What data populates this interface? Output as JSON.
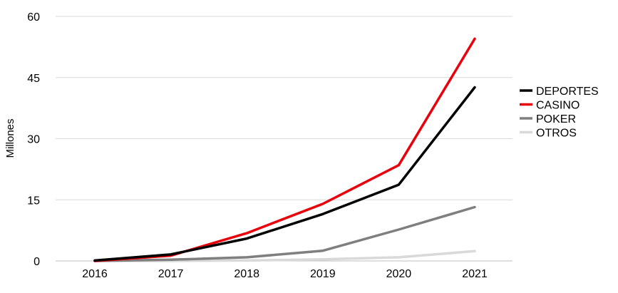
{
  "chart_data": {
    "type": "line",
    "title": "",
    "xlabel": "",
    "ylabel": "Millones",
    "ylim": [
      0,
      60
    ],
    "yticks": [
      "0",
      "15",
      "30",
      "45",
      "60"
    ],
    "categories": [
      "2016",
      "2017",
      "2018",
      "2019",
      "2020",
      "2021"
    ],
    "grid": "horizontal",
    "legend": "right",
    "series": [
      {
        "name": "DEPORTES",
        "color": "#000000",
        "values": [
          0.1,
          1.6,
          5.5,
          11.5,
          18.7,
          42.6
        ]
      },
      {
        "name": "CASINO",
        "color": "#e8000b",
        "values": [
          0.0,
          1.3,
          6.8,
          14.0,
          23.5,
          54.5
        ]
      },
      {
        "name": "POKER",
        "color": "#7f7f7f",
        "values": [
          0.0,
          0.3,
          0.9,
          2.5,
          7.7,
          13.2
        ]
      },
      {
        "name": "OTROS",
        "color": "#d9d9d9",
        "values": [
          0.0,
          0.0,
          0.1,
          0.4,
          0.9,
          2.4
        ]
      }
    ]
  }
}
